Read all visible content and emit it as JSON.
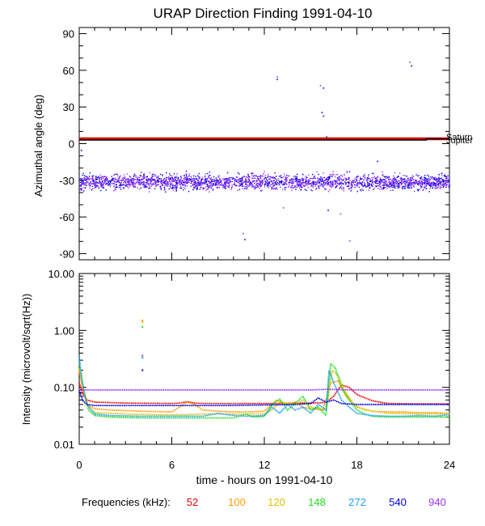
{
  "title": "URAP Direction Finding  1991-04-10",
  "colors": {
    "52": "#e00000",
    "100": "#ff9900",
    "120": "#d9c200",
    "148": "#22dd22",
    "272": "#1aa0f0",
    "540": "#0000dd",
    "940": "#9933ff",
    "planet_line": "#000000"
  },
  "chart_data": [
    {
      "type": "scatter",
      "ylabel": "Azimuthal angle (deg)",
      "xlim": [
        0,
        24
      ],
      "ylim": [
        -95,
        95
      ],
      "yticks": [
        "90",
        "60",
        "30",
        "0",
        "-30",
        "-60",
        "-90"
      ],
      "ytick_values": [
        90,
        60,
        30,
        0,
        -30,
        -60,
        -90
      ],
      "grid": false,
      "bands": [
        {
          "freq": "540",
          "center": -31,
          "spread": 8,
          "x_range": [
            0,
            24
          ]
        },
        {
          "freq": "940",
          "center": -31,
          "spread": 8,
          "x_range": [
            0,
            24
          ]
        }
      ],
      "lines": [
        {
          "name": "52",
          "x": [
            0,
            24
          ],
          "y": [
            4,
            4
          ]
        },
        {
          "name": "black",
          "x": [
            0,
            22.5,
            22.5,
            24
          ],
          "y": [
            3,
            3,
            4,
            4
          ]
        }
      ],
      "right_labels": [
        "Saturn",
        "Jupiter"
      ],
      "outliers": [
        {
          "x": 12.8,
          "y": 53,
          "freq": "540"
        },
        {
          "x": 12.8,
          "y": 55,
          "freq": "940"
        },
        {
          "x": 15.6,
          "y": 48,
          "freq": "940"
        },
        {
          "x": 15.8,
          "y": 46,
          "freq": "540"
        },
        {
          "x": 15.7,
          "y": 26,
          "freq": "540"
        },
        {
          "x": 15.8,
          "y": 23,
          "freq": "540"
        },
        {
          "x": 21.4,
          "y": 67,
          "freq": "940"
        },
        {
          "x": 21.5,
          "y": 64,
          "freq": "540"
        },
        {
          "x": 10.6,
          "y": -73,
          "freq": "940"
        },
        {
          "x": 10.7,
          "y": -78,
          "freq": "540"
        },
        {
          "x": 16.0,
          "y": 6,
          "freq": "540"
        },
        {
          "x": 16.1,
          "y": -54,
          "freq": "540"
        },
        {
          "x": 16.9,
          "y": -57,
          "freq": "940"
        },
        {
          "x": 17.5,
          "y": -79,
          "freq": "940"
        },
        {
          "x": 18.0,
          "y": -88,
          "freq": "940"
        },
        {
          "x": 0.1,
          "y": -5,
          "freq": "540"
        },
        {
          "x": 13.2,
          "y": -52,
          "freq": "940"
        },
        {
          "x": 19.3,
          "y": -14,
          "freq": "540"
        }
      ]
    },
    {
      "type": "line",
      "ylabel": "Intensity (microvolt/sqrt(Hz))",
      "xlabel": "time - hours on 1991-04-10",
      "xlim": [
        0,
        24
      ],
      "ylim": [
        0.01,
        10
      ],
      "yscale": "log",
      "yticks": [
        "10.00",
        "1.00",
        "0.10",
        "0.01"
      ],
      "ytick_values": [
        10,
        1,
        0.1,
        0.01
      ],
      "xticks": [
        "0",
        "6",
        "12",
        "18",
        "24"
      ],
      "xtick_values": [
        0,
        6,
        12,
        18,
        24
      ],
      "grid": false,
      "series": [
        {
          "name": "52",
          "x": [
            0,
            0.2,
            0.5,
            1,
            3,
            6,
            6.5,
            7,
            7.5,
            8,
            9,
            11,
            12,
            13,
            14,
            15,
            16,
            16.5,
            17,
            17.5,
            18,
            19,
            20,
            22,
            24
          ],
          "y": [
            0.12,
            0.08,
            0.06,
            0.055,
            0.053,
            0.052,
            0.053,
            0.056,
            0.053,
            0.052,
            0.052,
            0.052,
            0.052,
            0.052,
            0.053,
            0.053,
            0.054,
            0.07,
            0.11,
            0.1,
            0.075,
            0.058,
            0.052,
            0.051,
            0.051
          ]
        },
        {
          "name": "100",
          "x": [
            0,
            0.2,
            0.5,
            1,
            2,
            4,
            6,
            7,
            7.5,
            8,
            9,
            10,
            11,
            12,
            12.8,
            13.5,
            14,
            14.5,
            15,
            15.8,
            16.3,
            16.8,
            17.3,
            18,
            19,
            20,
            21,
            22,
            23,
            24
          ],
          "y": [
            0.2,
            0.1,
            0.05,
            0.042,
            0.04,
            0.038,
            0.037,
            0.055,
            0.05,
            0.04,
            0.038,
            0.037,
            0.037,
            0.038,
            0.06,
            0.05,
            0.055,
            0.045,
            0.042,
            0.04,
            0.12,
            0.13,
            0.07,
            0.045,
            0.038,
            0.037,
            0.037,
            0.036,
            0.036,
            0.035
          ]
        },
        {
          "name": "120",
          "x": [
            0,
            0.3,
            0.6,
            1,
            3,
            5,
            7,
            8,
            10,
            12,
            12.5,
            13,
            14,
            14.5,
            15,
            16,
            16.4,
            16.8,
            17.2,
            17.8,
            18.5,
            20,
            22,
            24
          ],
          "y": [
            0.22,
            0.09,
            0.045,
            0.036,
            0.034,
            0.033,
            0.033,
            0.034,
            0.034,
            0.034,
            0.04,
            0.055,
            0.05,
            0.06,
            0.045,
            0.04,
            0.2,
            0.16,
            0.09,
            0.05,
            0.04,
            0.035,
            0.034,
            0.034
          ]
        },
        {
          "name": "148",
          "x": [
            0,
            0.3,
            0.6,
            1,
            2,
            4,
            6,
            8,
            10,
            10.8,
            11.3,
            12,
            12.5,
            13,
            13.5,
            14,
            14.5,
            15,
            15.5,
            16,
            16.3,
            16.6,
            17,
            17.5,
            18,
            18.5,
            19,
            20,
            22,
            24
          ],
          "y": [
            0.28,
            0.09,
            0.04,
            0.032,
            0.03,
            0.029,
            0.029,
            0.029,
            0.029,
            0.034,
            0.03,
            0.031,
            0.05,
            0.062,
            0.04,
            0.052,
            0.07,
            0.04,
            0.045,
            0.032,
            0.26,
            0.22,
            0.1,
            0.06,
            0.04,
            0.034,
            0.031,
            0.03,
            0.03,
            0.03
          ]
        },
        {
          "name": "272",
          "x": [
            0,
            0.2,
            0.5,
            1,
            2,
            4,
            6,
            8,
            9,
            10,
            11,
            12,
            12.5,
            13,
            13.5,
            14,
            14.5,
            15,
            15.5,
            16,
            16.2,
            16.5,
            17,
            17.5,
            18,
            19,
            20,
            21,
            22,
            23,
            24
          ],
          "y": [
            0.35,
            0.12,
            0.05,
            0.034,
            0.032,
            0.031,
            0.031,
            0.031,
            0.035,
            0.032,
            0.031,
            0.032,
            0.045,
            0.035,
            0.05,
            0.04,
            0.045,
            0.035,
            0.05,
            0.04,
            0.2,
            0.12,
            0.06,
            0.045,
            0.035,
            0.032,
            0.031,
            0.031,
            0.032,
            0.031,
            0.033
          ]
        },
        {
          "name": "540",
          "x": [
            0,
            0.2,
            0.5,
            1,
            3,
            6,
            9,
            12,
            14,
            15,
            15.5,
            16,
            16.5,
            17,
            18,
            20,
            22,
            24
          ],
          "y": [
            0.09,
            0.06,
            0.05,
            0.048,
            0.048,
            0.048,
            0.048,
            0.049,
            0.05,
            0.052,
            0.065,
            0.055,
            0.06,
            0.052,
            0.05,
            0.05,
            0.05,
            0.05
          ]
        },
        {
          "name": "940",
          "x": [
            0,
            0.5,
            3,
            6,
            9,
            12,
            15,
            16,
            18,
            20,
            22,
            24
          ],
          "y": [
            0.09,
            0.09,
            0.09,
            0.09,
            0.09,
            0.09,
            0.09,
            0.092,
            0.09,
            0.09,
            0.09,
            0.09
          ]
        }
      ],
      "outliers": [
        {
          "x": 4.1,
          "y": 1.5,
          "freq": "100"
        },
        {
          "x": 4.1,
          "y": 1.4,
          "freq": "120"
        },
        {
          "x": 4.1,
          "y": 1.15,
          "freq": "148"
        },
        {
          "x": 4.1,
          "y": 0.36,
          "freq": "940"
        },
        {
          "x": 4.1,
          "y": 0.33,
          "freq": "272"
        },
        {
          "x": 4.1,
          "y": 0.2,
          "freq": "540"
        }
      ]
    }
  ],
  "legend": {
    "label": "Frequencies (kHz):",
    "items": [
      "52",
      "100",
      "120",
      "148",
      "272",
      "540",
      "940"
    ]
  }
}
